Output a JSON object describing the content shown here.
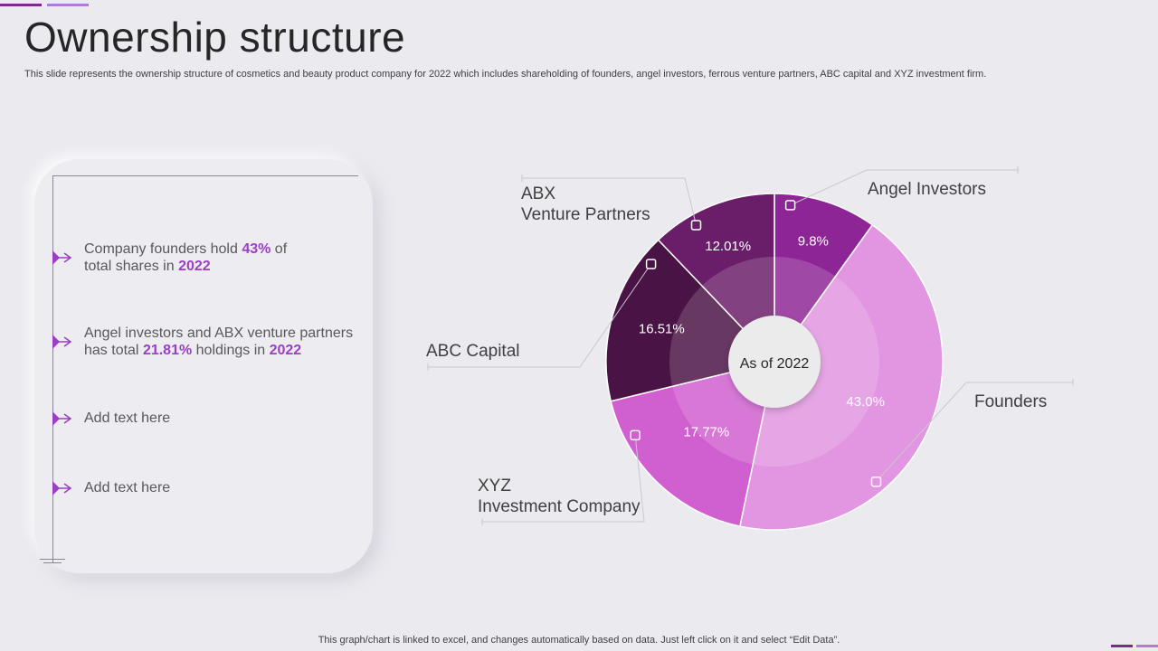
{
  "slide": {
    "title": "Ownership structure",
    "subtitle": "This slide represents the ownership structure of cosmetics and beauty product company for 2022 which includes shareholding of founders, angel investors, ferrous venture partners, ABC capital and XYZ  investment firm.",
    "footer": "This graph/chart is linked to excel,  and changes automatically based on data. Just left click on it and select “Edit Data”."
  },
  "colors": {
    "accent": "#9b3fc4",
    "bar_dark": "#7a2a8c",
    "bar_light": "#b07bd4"
  },
  "panel": {
    "items": [
      {
        "parts": [
          {
            "t": "Company founders hold ",
            "hl": false
          },
          {
            "t": "43%",
            "hl": true
          },
          {
            "t": " of\ntotal shares in ",
            "hl": false
          },
          {
            "t": "2022",
            "hl": true
          }
        ]
      },
      {
        "parts": [
          {
            "t": "Angel investors and ABX venture  partners\nhas total ",
            "hl": false
          },
          {
            "t": "21.81%",
            "hl": true
          },
          {
            "t": " holdings in ",
            "hl": false
          },
          {
            "t": "2022",
            "hl": true
          }
        ]
      },
      {
        "parts": [
          {
            "t": "Add text here",
            "hl": false
          }
        ]
      },
      {
        "parts": [
          {
            "t": "Add text here",
            "hl": false
          }
        ]
      }
    ]
  },
  "chart_data": {
    "type": "pie",
    "center_label": "As of 2022",
    "categories": [
      "Angel Investors",
      "Founders",
      "XYZ\nInvestment Company",
      "ABC Capital",
      "ABX\nVenture Partners"
    ],
    "values": [
      9.8,
      43.0,
      17.77,
      16.51,
      12.01
    ],
    "value_labels": [
      "9.8%",
      "43.0%",
      "17.77%",
      "16.51%",
      "12.01%"
    ],
    "colors": [
      "#8e2596",
      "#e295e1",
      "#d05fd0",
      "#4a1345",
      "#6a1d68"
    ]
  }
}
